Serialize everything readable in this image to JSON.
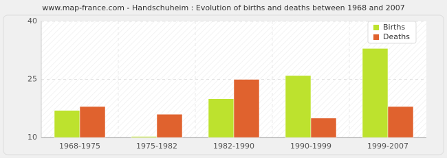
{
  "chart_data": {
    "type": "bar",
    "title": "www.map-france.com - Handschuheim : Evolution of births and deaths between 1968 and 2007",
    "categories": [
      "1968-1975",
      "1975-1982",
      "1982-1990",
      "1990-1999",
      "1999-2007"
    ],
    "series": [
      {
        "name": "Births",
        "color": "#bde22e",
        "values": [
          17,
          10,
          20,
          26,
          33
        ]
      },
      {
        "name": "Deaths",
        "color": "#e0622e",
        "values": [
          18,
          16,
          25,
          15,
          18
        ]
      }
    ],
    "ylim": [
      10,
      40
    ],
    "yticks": [
      10,
      25,
      40
    ],
    "grid": true,
    "legend": "top-right"
  }
}
